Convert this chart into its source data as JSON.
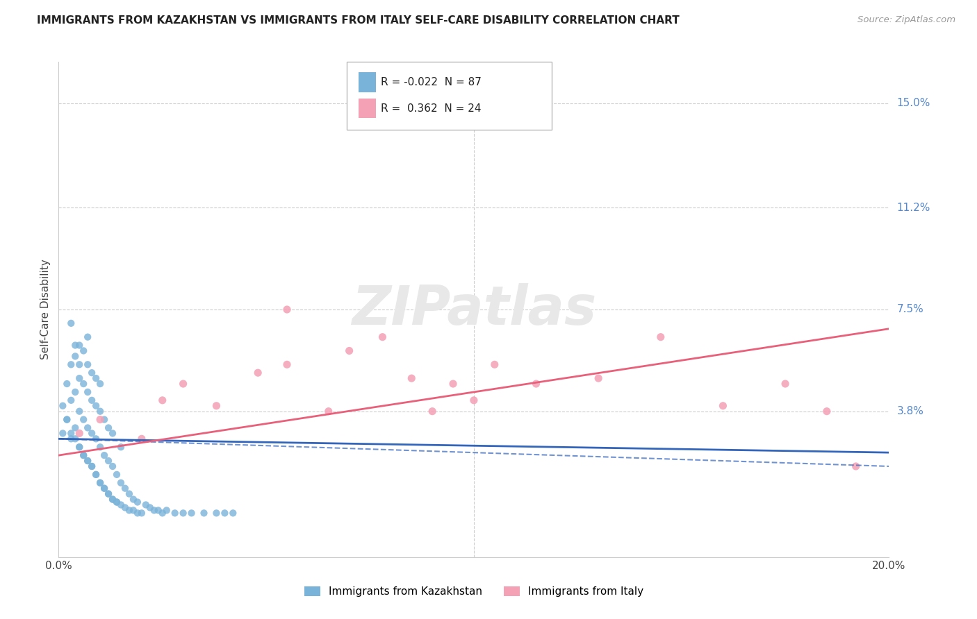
{
  "title": "IMMIGRANTS FROM KAZAKHSTAN VS IMMIGRANTS FROM ITALY SELF-CARE DISABILITY CORRELATION CHART",
  "source": "Source: ZipAtlas.com",
  "ylabel_label": "Self-Care Disability",
  "xlim": [
    0.0,
    0.2
  ],
  "ylim": [
    -0.015,
    0.165
  ],
  "background_color": "#ffffff",
  "legend_kazakh_R": "-0.022",
  "legend_kazakh_N": "87",
  "legend_italy_R": "0.362",
  "legend_italy_N": "24",
  "kazakh_color": "#7ab3d9",
  "italy_color": "#f4a0b5",
  "kazakh_line_color": "#3366bb",
  "italy_line_color": "#e8607a",
  "grid_color": "#cccccc",
  "y_tick_vals": [
    0.15,
    0.112,
    0.075,
    0.038
  ],
  "y_tick_labels": [
    "15.0%",
    "11.2%",
    "7.5%",
    "3.8%"
  ],
  "kazakh_scatter_x": [
    0.001,
    0.002,
    0.002,
    0.003,
    0.003,
    0.003,
    0.004,
    0.004,
    0.004,
    0.005,
    0.005,
    0.005,
    0.005,
    0.006,
    0.006,
    0.006,
    0.006,
    0.007,
    0.007,
    0.007,
    0.007,
    0.007,
    0.008,
    0.008,
    0.008,
    0.008,
    0.009,
    0.009,
    0.009,
    0.009,
    0.01,
    0.01,
    0.01,
    0.01,
    0.011,
    0.011,
    0.011,
    0.012,
    0.012,
    0.012,
    0.013,
    0.013,
    0.013,
    0.014,
    0.014,
    0.015,
    0.015,
    0.015,
    0.016,
    0.016,
    0.017,
    0.017,
    0.018,
    0.018,
    0.019,
    0.019,
    0.02,
    0.021,
    0.022,
    0.023,
    0.024,
    0.025,
    0.026,
    0.028,
    0.03,
    0.032,
    0.035,
    0.038,
    0.04,
    0.042,
    0.001,
    0.002,
    0.003,
    0.004,
    0.005,
    0.006,
    0.007,
    0.008,
    0.009,
    0.01,
    0.011,
    0.012,
    0.013,
    0.014,
    0.003,
    0.004,
    0.005
  ],
  "kazakh_scatter_y": [
    0.03,
    0.035,
    0.048,
    0.028,
    0.042,
    0.055,
    0.032,
    0.045,
    0.058,
    0.025,
    0.038,
    0.05,
    0.062,
    0.022,
    0.035,
    0.048,
    0.06,
    0.02,
    0.032,
    0.045,
    0.055,
    0.065,
    0.018,
    0.03,
    0.042,
    0.052,
    0.015,
    0.028,
    0.04,
    0.05,
    0.012,
    0.025,
    0.038,
    0.048,
    0.01,
    0.022,
    0.035,
    0.008,
    0.02,
    0.032,
    0.006,
    0.018,
    0.03,
    0.005,
    0.015,
    0.004,
    0.012,
    0.025,
    0.003,
    0.01,
    0.002,
    0.008,
    0.002,
    0.006,
    0.001,
    0.005,
    0.001,
    0.004,
    0.003,
    0.002,
    0.002,
    0.001,
    0.002,
    0.001,
    0.001,
    0.001,
    0.001,
    0.001,
    0.001,
    0.001,
    0.04,
    0.035,
    0.03,
    0.028,
    0.025,
    0.022,
    0.02,
    0.018,
    0.015,
    0.012,
    0.01,
    0.008,
    0.006,
    0.005,
    0.07,
    0.062,
    0.055
  ],
  "italy_scatter_x": [
    0.005,
    0.01,
    0.02,
    0.025,
    0.03,
    0.038,
    0.048,
    0.055,
    0.065,
    0.07,
    0.078,
    0.085,
    0.09,
    0.095,
    0.1,
    0.105,
    0.115,
    0.13,
    0.145,
    0.16,
    0.175,
    0.185,
    0.192,
    0.055
  ],
  "italy_scatter_y": [
    0.03,
    0.035,
    0.028,
    0.042,
    0.048,
    0.04,
    0.052,
    0.055,
    0.038,
    0.06,
    0.065,
    0.05,
    0.038,
    0.048,
    0.042,
    0.055,
    0.048,
    0.05,
    0.065,
    0.04,
    0.048,
    0.038,
    0.018,
    0.075
  ],
  "kazakh_line_x0": 0.0,
  "kazakh_line_x1": 0.2,
  "kazakh_line_y0": 0.028,
  "kazakh_line_y1": 0.023,
  "italy_line_x0": 0.0,
  "italy_line_x1": 0.2,
  "italy_line_y0": 0.022,
  "italy_line_y1": 0.068
}
